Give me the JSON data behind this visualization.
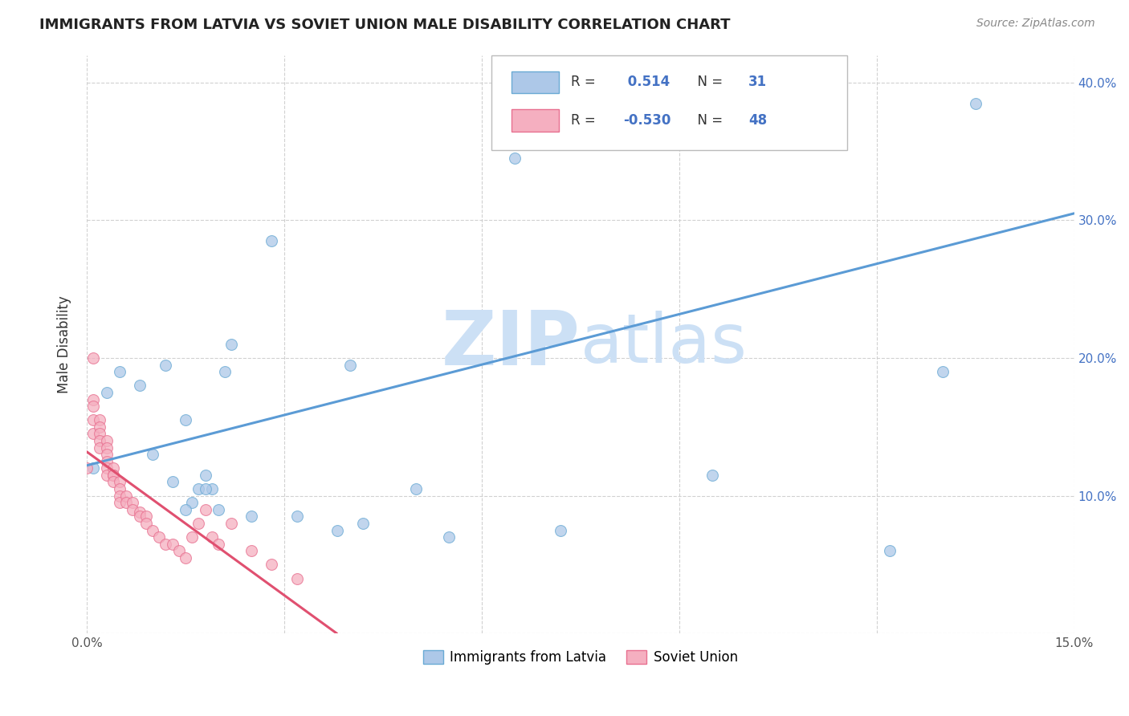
{
  "title": "IMMIGRANTS FROM LATVIA VS SOVIET UNION MALE DISABILITY CORRELATION CHART",
  "source": "Source: ZipAtlas.com",
  "ylabel": "Male Disability",
  "x_min": 0.0,
  "x_max": 0.15,
  "y_min": 0.0,
  "y_max": 0.42,
  "x_ticks": [
    0.0,
    0.03,
    0.06,
    0.09,
    0.12,
    0.15
  ],
  "y_ticks": [
    0.0,
    0.1,
    0.2,
    0.3,
    0.4
  ],
  "y_tick_labels": [
    "",
    "10.0%",
    "20.0%",
    "30.0%",
    "40.0%"
  ],
  "legend_label1": "Immigrants from Latvia",
  "legend_label2": "Soviet Union",
  "r1": "0.514",
  "n1": "31",
  "r2": "-0.530",
  "n2": "48",
  "color_latvia_fill": "#adc8e8",
  "color_latvia_edge": "#6aaad4",
  "color_soviet_fill": "#f5afc0",
  "color_soviet_edge": "#e87090",
  "color_line_latvia": "#5b9bd5",
  "color_line_soviet": "#e05070",
  "watermark_color": "#cce0f5",
  "latvia_x": [
    0.001,
    0.003,
    0.005,
    0.008,
    0.01,
    0.012,
    0.013,
    0.015,
    0.016,
    0.017,
    0.018,
    0.019,
    0.021,
    0.022,
    0.025,
    0.028,
    0.032,
    0.04,
    0.05,
    0.055,
    0.065,
    0.072,
    0.095,
    0.122,
    0.13,
    0.135,
    0.038,
    0.042,
    0.015,
    0.018,
    0.02
  ],
  "latvia_y": [
    0.12,
    0.175,
    0.19,
    0.18,
    0.13,
    0.195,
    0.11,
    0.155,
    0.095,
    0.105,
    0.115,
    0.105,
    0.19,
    0.21,
    0.085,
    0.285,
    0.085,
    0.195,
    0.105,
    0.07,
    0.345,
    0.075,
    0.115,
    0.06,
    0.19,
    0.385,
    0.075,
    0.08,
    0.09,
    0.105,
    0.09
  ],
  "soviet_x": [
    0.0,
    0.001,
    0.001,
    0.001,
    0.001,
    0.001,
    0.002,
    0.002,
    0.002,
    0.002,
    0.002,
    0.003,
    0.003,
    0.003,
    0.003,
    0.003,
    0.003,
    0.004,
    0.004,
    0.004,
    0.004,
    0.005,
    0.005,
    0.005,
    0.005,
    0.006,
    0.006,
    0.007,
    0.007,
    0.008,
    0.008,
    0.009,
    0.009,
    0.01,
    0.011,
    0.012,
    0.013,
    0.014,
    0.015,
    0.016,
    0.017,
    0.018,
    0.019,
    0.02,
    0.022,
    0.025,
    0.028,
    0.032
  ],
  "soviet_y": [
    0.12,
    0.2,
    0.17,
    0.165,
    0.155,
    0.145,
    0.155,
    0.15,
    0.145,
    0.14,
    0.135,
    0.14,
    0.135,
    0.13,
    0.125,
    0.12,
    0.115,
    0.12,
    0.115,
    0.115,
    0.11,
    0.11,
    0.105,
    0.1,
    0.095,
    0.1,
    0.095,
    0.095,
    0.09,
    0.088,
    0.085,
    0.085,
    0.08,
    0.075,
    0.07,
    0.065,
    0.065,
    0.06,
    0.055,
    0.07,
    0.08,
    0.09,
    0.07,
    0.065,
    0.08,
    0.06,
    0.05,
    0.04
  ],
  "line_latvia_x0": 0.0,
  "line_latvia_x1": 0.15,
  "line_latvia_y0": 0.122,
  "line_latvia_y1": 0.305,
  "line_soviet_x0": 0.0,
  "line_soviet_x1": 0.038,
  "line_soviet_y0": 0.132,
  "line_soviet_y1": 0.0
}
